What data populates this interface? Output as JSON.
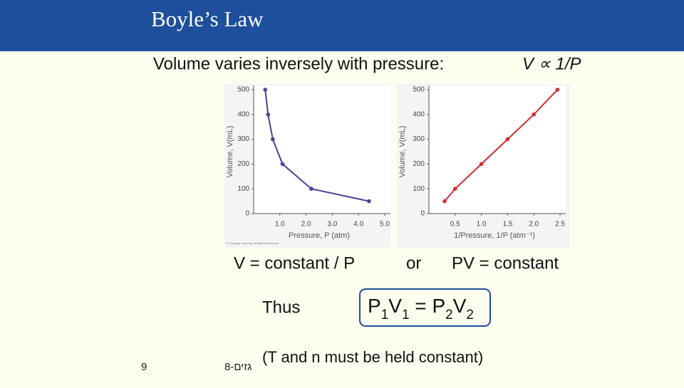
{
  "slide": {
    "title": "Boyle’s Law",
    "statement": "Volume varies inversely with pressure:",
    "proportionality": "V ∝ 1/P",
    "equation_1": "V = constant / P",
    "connector": "or",
    "equation_2": "PV = constant",
    "thus": "Thus",
    "law_parts": [
      "P",
      "1",
      "V",
      "1",
      " = P",
      "2",
      "V",
      "2"
    ],
    "note": "(T and n must be held constant)",
    "page_number": "9",
    "footer": "גזים-8"
  },
  "chart_data": [
    {
      "type": "line",
      "xlabel": "Pressure, P (atm)",
      "ylabel": "Volume, V(mL)",
      "credit": "© Cengage Learning. All Rights Reserved.",
      "x": [
        0.44,
        0.55,
        0.73,
        1.1,
        2.2,
        4.4
      ],
      "series": [
        {
          "color": "#4b3f9b",
          "values": [
            500,
            400,
            300,
            200,
            100,
            50
          ]
        }
      ],
      "xlim": [
        0,
        5
      ],
      "ylim": [
        0,
        500
      ],
      "xticks": [
        {
          "value": 1,
          "label": "1.0"
        },
        {
          "value": 2,
          "label": "2.0"
        },
        {
          "value": 3,
          "label": "3.0"
        },
        {
          "value": 4,
          "label": "4.0"
        },
        {
          "value": 5,
          "label": "5.0"
        }
      ],
      "yticks": [
        0,
        100,
        200,
        300,
        400,
        500
      ]
    },
    {
      "type": "line",
      "xlabel": "1/Pressure, 1/P (atm⁻¹)",
      "ylabel": "Volume, V(mL)",
      "x": [
        0.3,
        0.5,
        1.0,
        1.5,
        2.0,
        2.45
      ],
      "series": [
        {
          "color": "#d32f2f",
          "values": [
            50,
            100,
            200,
            300,
            400,
            500
          ]
        }
      ],
      "xlim": [
        0,
        2.5
      ],
      "ylim": [
        0,
        500
      ],
      "xticks": [
        0.5,
        {
          "value": 1,
          "label": "1.0"
        },
        1.5,
        {
          "value": 2,
          "label": "2.0"
        },
        2.5
      ],
      "yticks": [
        0,
        100,
        200,
        300,
        400,
        500
      ]
    }
  ]
}
